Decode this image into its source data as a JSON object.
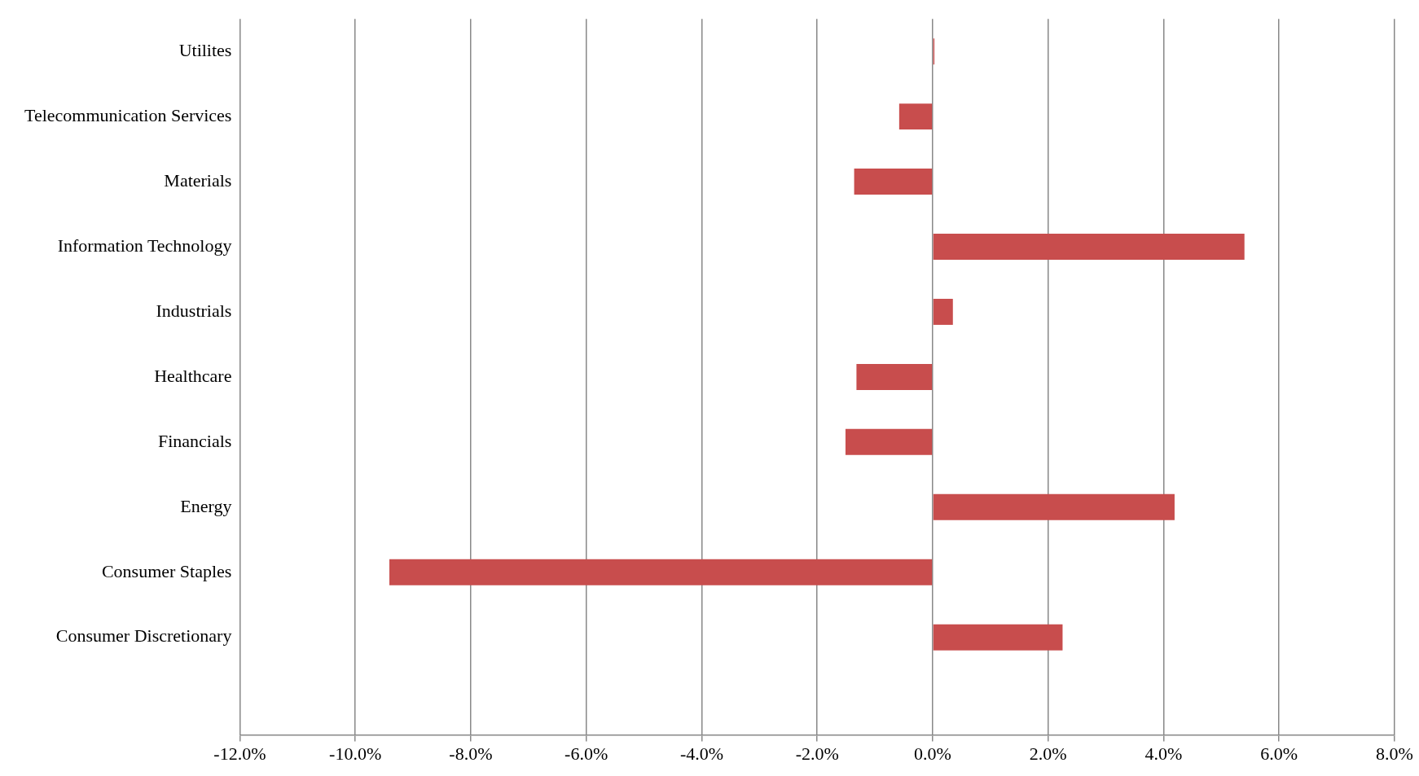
{
  "chart_data": {
    "type": "bar",
    "orientation": "horizontal",
    "categories": [
      "Utilites",
      "Telecommunication Services",
      "Materials",
      "Information Technology",
      "Industrials",
      "Healthcare",
      "Financials",
      "Energy",
      "Consumer Staples",
      "Consumer Discretionary",
      null
    ],
    "values": [
      0.03,
      -0.58,
      -1.36,
      5.4,
      0.35,
      -1.32,
      -1.51,
      4.19,
      -9.41,
      2.25,
      null
    ],
    "color": "#c84d4d",
    "xlim": [
      -12,
      8
    ],
    "xticks": [
      {
        "value": -12,
        "label": "-12.0%"
      },
      {
        "value": -10,
        "label": "-10.0%"
      },
      {
        "value": -8,
        "label": "-8.0%"
      },
      {
        "value": -6,
        "label": "-6.0%"
      },
      {
        "value": -4,
        "label": "-4.0%"
      },
      {
        "value": -2,
        "label": "-2.0%"
      },
      {
        "value": 0,
        "label": "0.0%"
      },
      {
        "value": 2,
        "label": "2.0%"
      },
      {
        "value": 4,
        "label": "4.0%"
      },
      {
        "value": 6,
        "label": "6.0%"
      },
      {
        "value": 8,
        "label": "8.0%"
      }
    ],
    "grid": "x",
    "legend": false
  }
}
